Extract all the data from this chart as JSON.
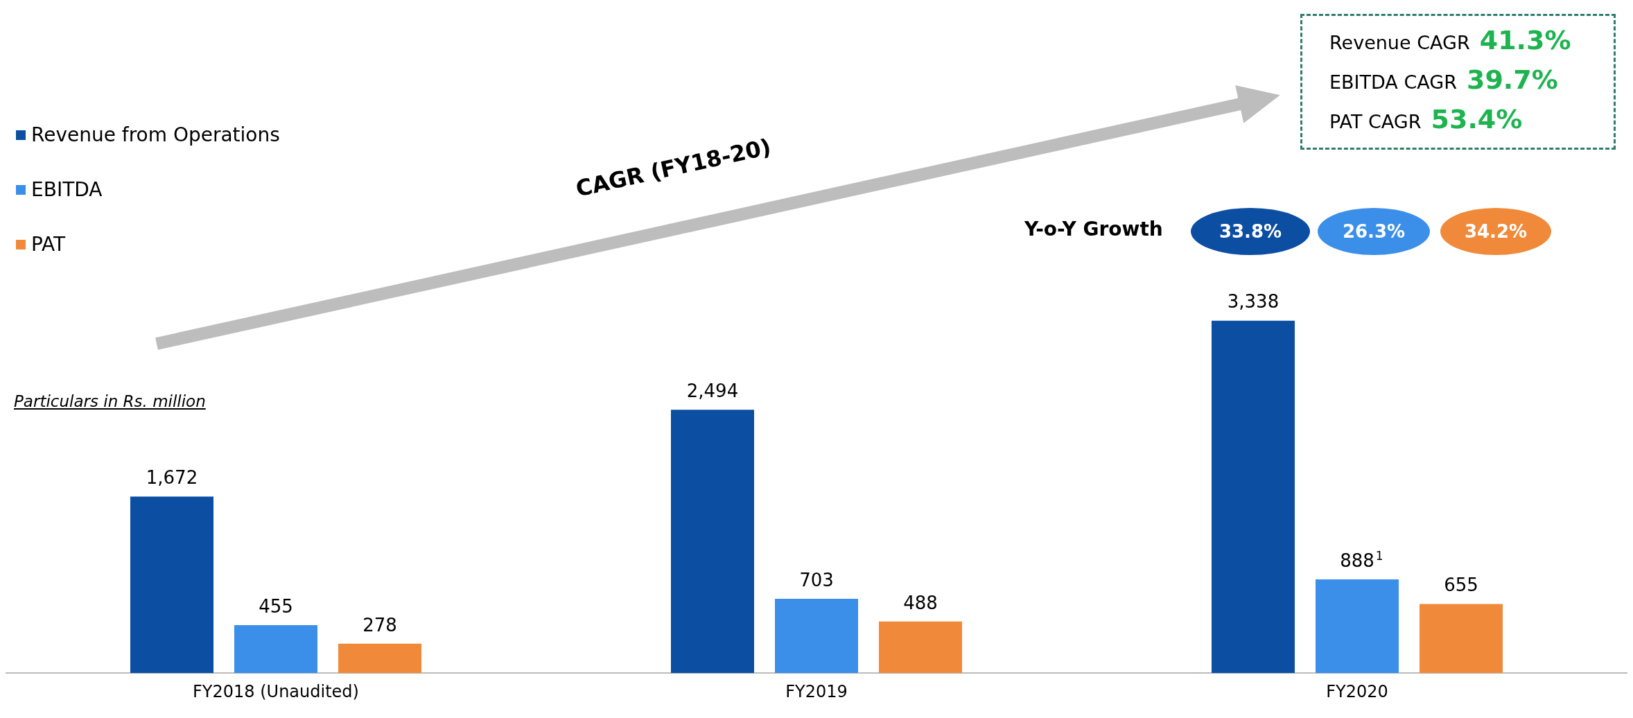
{
  "chart_data": {
    "type": "bar",
    "categories": [
      "FY2018 (Unaudited)",
      "FY2019",
      "FY2020"
    ],
    "series": [
      {
        "name": "Revenue from Operations",
        "color": "#0b4ea2",
        "values": [
          1672,
          2494,
          3338
        ],
        "value_labels": [
          "1,672",
          "2,494",
          "3,338"
        ]
      },
      {
        "name": "EBITDA",
        "color": "#3b8fe8",
        "values": [
          455,
          703,
          888
        ],
        "value_labels": [
          "455",
          "703",
          "888$^{1}$"
        ]
      },
      {
        "name": "PAT",
        "color": "#f08a3a",
        "values": [
          278,
          488,
          655
        ],
        "value_labels": [
          "278",
          "488",
          "655"
        ]
      }
    ],
    "legend": "left",
    "grid": false,
    "annotations": [
      "Particulars in Rs. million",
      "CAGR (FY18-20)",
      "Revenue CAGR 41.3%",
      "EBITDA CAGR 39.7%",
      "PAT CAGR 53.4%",
      "Y-o-Y Growth",
      "33.8%",
      "26.3%",
      "34.2%"
    ]
  }
}
